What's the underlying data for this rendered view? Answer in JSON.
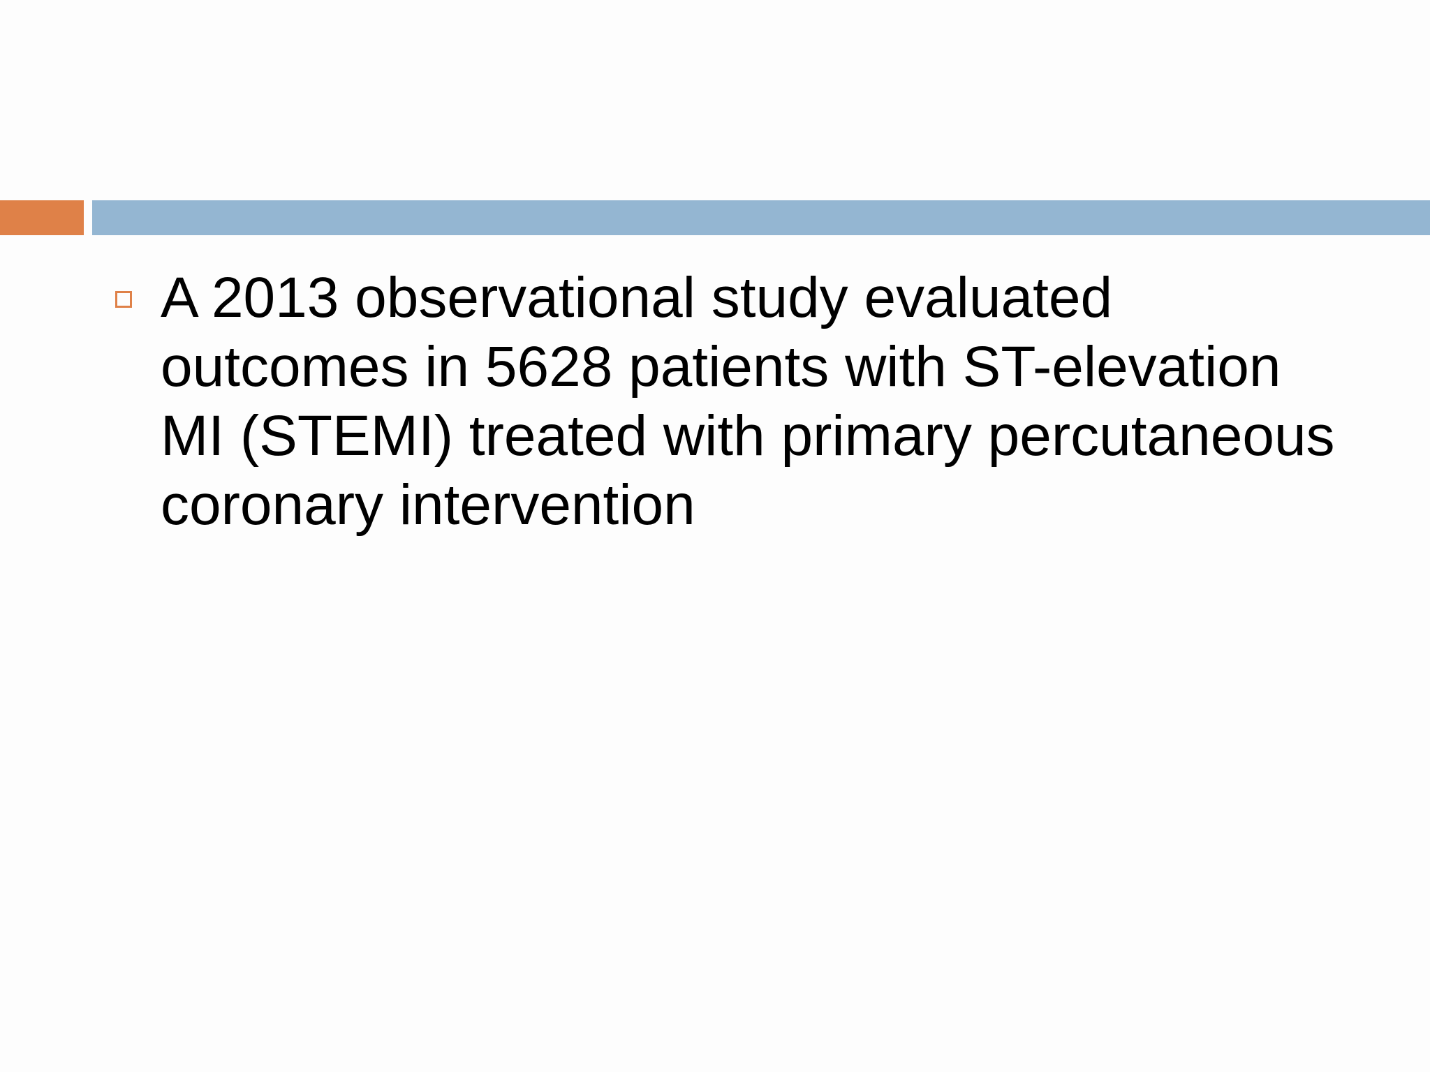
{
  "slide": {
    "bullets": [
      "A 2013 observational study evaluated outcomes in 5628 patients with ST-elevation MI (STEMI) treated with primary percutaneous coronary intervention"
    ]
  }
}
